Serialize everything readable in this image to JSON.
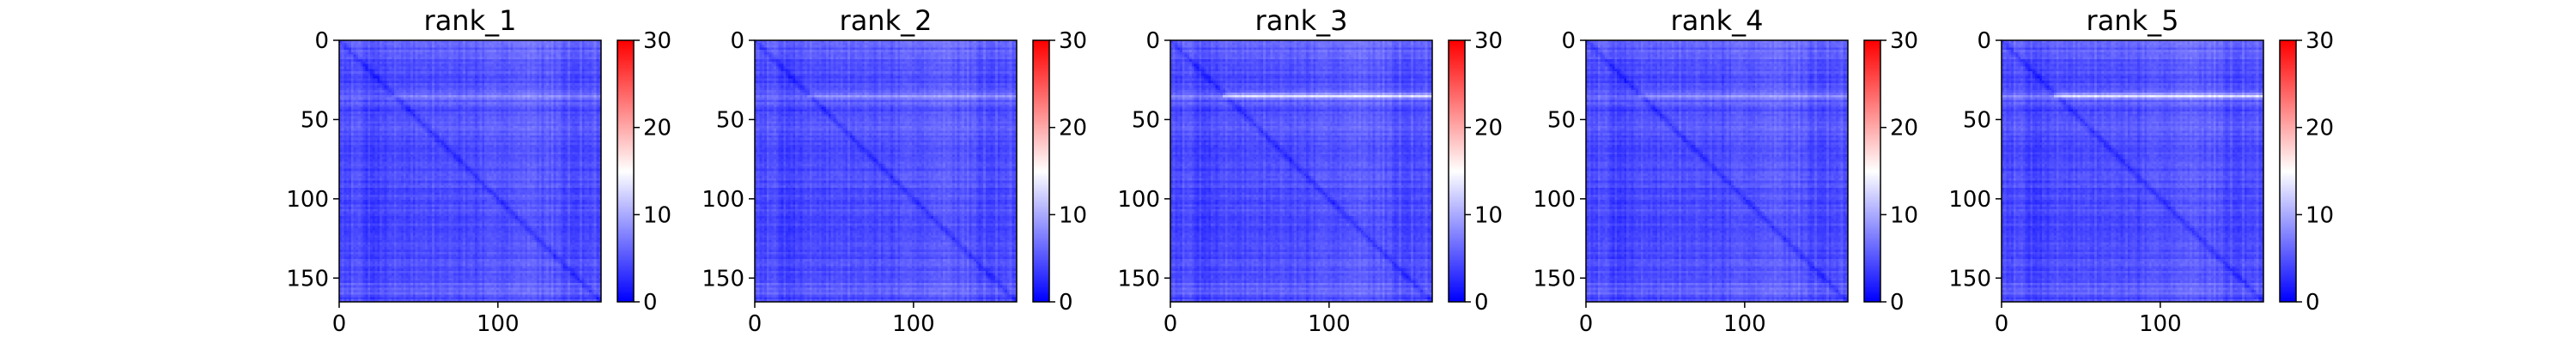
{
  "chart_data": [
    {
      "type": "heatmap",
      "title": "rank_1",
      "xlim": [
        0,
        165
      ],
      "ylim": [
        165,
        0
      ],
      "xticks": [
        0,
        100
      ],
      "xtick_labels": [
        "0",
        "100"
      ],
      "yticks": [
        0,
        50,
        100,
        150
      ],
      "ytick_labels": [
        "0",
        "50",
        "100",
        "150"
      ],
      "colorbar": {
        "range": [
          0,
          30
        ],
        "ticks": [
          0,
          10,
          20,
          30
        ],
        "tick_labels": [
          "0",
          "10",
          "20",
          "30"
        ],
        "colors": [
          "#0000ff",
          "#ffffff",
          "#ff0000"
        ]
      },
      "field": {
        "base": 4.5,
        "diagonal": 1.0,
        "bright_rows": [
          {
            "at": 35,
            "strength": 3
          }
        ]
      }
    },
    {
      "type": "heatmap",
      "title": "rank_2",
      "xlim": [
        0,
        165
      ],
      "ylim": [
        165,
        0
      ],
      "xticks": [
        0,
        100
      ],
      "xtick_labels": [
        "0",
        "100"
      ],
      "yticks": [
        0,
        50,
        100,
        150
      ],
      "ytick_labels": [
        "0",
        "50",
        "100",
        "150"
      ],
      "colorbar": {
        "range": [
          0,
          30
        ],
        "ticks": [
          0,
          10,
          20,
          30
        ],
        "tick_labels": [
          "0",
          "10",
          "20",
          "30"
        ],
        "colors": [
          "#0000ff",
          "#ffffff",
          "#ff0000"
        ]
      },
      "field": {
        "base": 4.5,
        "diagonal": 1.0,
        "bright_rows": [
          {
            "at": 35,
            "strength": 4
          }
        ]
      }
    },
    {
      "type": "heatmap",
      "title": "rank_3",
      "xlim": [
        0,
        165
      ],
      "ylim": [
        165,
        0
      ],
      "xticks": [
        0,
        100
      ],
      "xtick_labels": [
        "0",
        "100"
      ],
      "yticks": [
        0,
        50,
        100,
        150
      ],
      "ytick_labels": [
        "0",
        "50",
        "100",
        "150"
      ],
      "colorbar": {
        "range": [
          0,
          30
        ],
        "ticks": [
          0,
          10,
          20,
          30
        ],
        "tick_labels": [
          "0",
          "10",
          "20",
          "30"
        ],
        "colors": [
          "#0000ff",
          "#ffffff",
          "#ff0000"
        ]
      },
      "field": {
        "base": 4.5,
        "diagonal": 1.0,
        "bright_rows": [
          {
            "at": 35,
            "strength": 9
          }
        ]
      }
    },
    {
      "type": "heatmap",
      "title": "rank_4",
      "xlim": [
        0,
        165
      ],
      "ylim": [
        165,
        0
      ],
      "xticks": [
        0,
        100
      ],
      "xtick_labels": [
        "0",
        "100"
      ],
      "yticks": [
        0,
        50,
        100,
        150
      ],
      "ytick_labels": [
        "0",
        "50",
        "100",
        "150"
      ],
      "colorbar": {
        "range": [
          0,
          30
        ],
        "ticks": [
          0,
          10,
          20,
          30
        ],
        "tick_labels": [
          "0",
          "10",
          "20",
          "30"
        ],
        "colors": [
          "#0000ff",
          "#ffffff",
          "#ff0000"
        ]
      },
      "field": {
        "base": 4.5,
        "diagonal": 1.0,
        "bright_rows": [
          {
            "at": 35,
            "strength": 4
          }
        ]
      }
    },
    {
      "type": "heatmap",
      "title": "rank_5",
      "xlim": [
        0,
        165
      ],
      "ylim": [
        165,
        0
      ],
      "xticks": [
        0,
        100
      ],
      "xtick_labels": [
        "0",
        "100"
      ],
      "yticks": [
        0,
        50,
        100,
        150
      ],
      "ytick_labels": [
        "0",
        "50",
        "100",
        "150"
      ],
      "colorbar": {
        "range": [
          0,
          30
        ],
        "ticks": [
          0,
          10,
          20,
          30
        ],
        "tick_labels": [
          "0",
          "10",
          "20",
          "30"
        ],
        "colors": [
          "#0000ff",
          "#ffffff",
          "#ff0000"
        ]
      },
      "field": {
        "base": 4.5,
        "diagonal": 1.0,
        "bright_rows": [
          {
            "at": 35,
            "strength": 9
          }
        ]
      }
    }
  ]
}
